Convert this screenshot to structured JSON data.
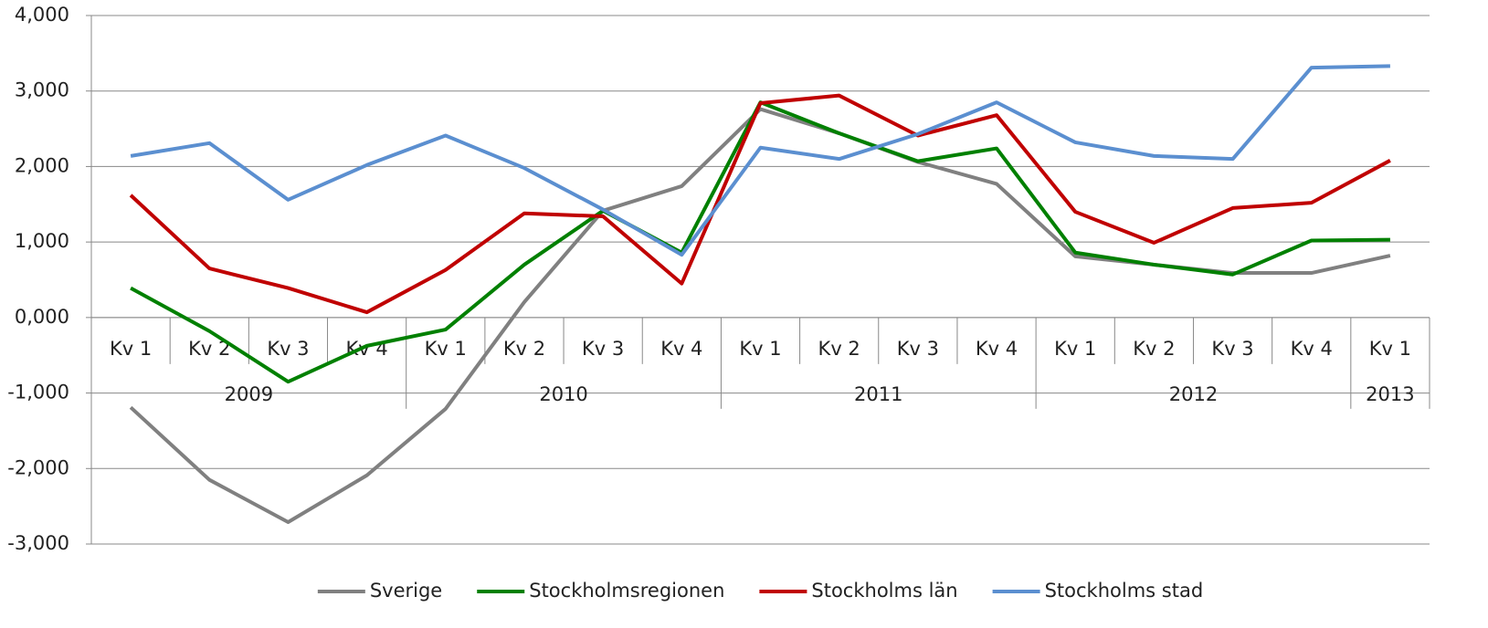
{
  "chart_data": {
    "type": "line",
    "categories": [
      "Kv 1",
      "Kv 2",
      "Kv 3",
      "Kv 4",
      "Kv 1",
      "Kv 2",
      "Kv 3",
      "Kv 4",
      "Kv 1",
      "Kv 2",
      "Kv 3",
      "Kv 4",
      "Kv 1",
      "Kv 2",
      "Kv 3",
      "Kv 4",
      "Kv 1"
    ],
    "groups": [
      {
        "label": "2009",
        "span": 4
      },
      {
        "label": "2010",
        "span": 4
      },
      {
        "label": "2011",
        "span": 4
      },
      {
        "label": "2012",
        "span": 4
      },
      {
        "label": "2013",
        "span": 1
      }
    ],
    "series": [
      {
        "name": "Sverige",
        "color": "#808080",
        "values": [
          -1190,
          -2150,
          -2710,
          -2090,
          -1210,
          205,
          1415,
          1740,
          2760,
          2440,
          2060,
          1770,
          810,
          700,
          590,
          590,
          820
        ]
      },
      {
        "name": "Stockholmsregionen",
        "color": "#008000",
        "values": [
          390,
          -180,
          -850,
          -375,
          -160,
          700,
          1415,
          860,
          2850,
          2440,
          2070,
          2240,
          860,
          700,
          570,
          1020,
          1030
        ]
      },
      {
        "name": "Stockholms län",
        "color": "#c00000",
        "values": [
          1620,
          650,
          390,
          70,
          630,
          1380,
          1340,
          450,
          2840,
          2940,
          2410,
          2680,
          1400,
          990,
          1450,
          1520,
          2080
        ]
      },
      {
        "name": "Stockholms stad",
        "color": "#5b8fd0",
        "values": [
          2140,
          2310,
          1560,
          2020,
          2410,
          1980,
          1430,
          830,
          2250,
          2100,
          2430,
          2850,
          2320,
          2140,
          2100,
          3310,
          3330
        ]
      }
    ],
    "ylim": [
      -3000,
      4000
    ],
    "yticks": [
      {
        "value": -3000,
        "label": "-3,000"
      },
      {
        "value": -2000,
        "label": "-2,000"
      },
      {
        "value": -1000,
        "label": "-1,000"
      },
      {
        "value": 0,
        "label": "0,000"
      },
      {
        "value": 1000,
        "label": "1,000"
      },
      {
        "value": 2000,
        "label": "2,000"
      },
      {
        "value": 3000,
        "label": "3,000"
      },
      {
        "value": 4000,
        "label": "4,000"
      }
    ],
    "grid": true,
    "legend": "bottom"
  }
}
